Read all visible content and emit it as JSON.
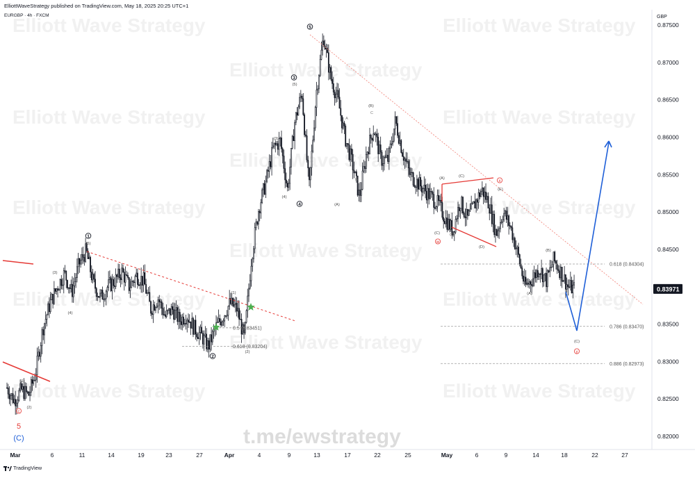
{
  "header": {
    "published": "ElliottWaveStrategy published on TradingView.com, May 18, 2025 20:25 UTC+1",
    "symbol": "EURGBP · 4h · FXCM",
    "currency": "GBP",
    "current_price": "0.83971"
  },
  "footer": {
    "brand": "TradingView",
    "logo_icon": "tradingview-logo-icon"
  },
  "watermark": {
    "text": "Elliott Wave Strategy",
    "telegram": "t.me/ewstrategy"
  },
  "colors": {
    "candle": "#131722",
    "bullish_trend": "#e53935",
    "trendline_red": "#e53935",
    "projection_blue": "#1e5fd8",
    "fib_line": "#9a9a9a",
    "label_grey": "#4a4a4a",
    "green_star": "#4caf50"
  },
  "chart_data": {
    "type": "candlestick",
    "y_axis": {
      "min": 0.8185,
      "max": 0.8765,
      "ticks": [
        0.875,
        0.87,
        0.865,
        0.86,
        0.855,
        0.85,
        0.845,
        0.84,
        0.835,
        0.83,
        0.825,
        0.82
      ],
      "tick_labels": [
        "0.87500",
        "0.87000",
        "0.86500",
        "0.86000",
        "0.85500",
        "0.85000",
        "0.84500",
        "0.84000",
        "0.83500",
        "0.83000",
        "0.82500",
        "0.82000"
      ]
    },
    "x_axis": {
      "labels": [
        "Mar",
        "6",
        "11",
        "14",
        "19",
        "23",
        "27",
        "Apr",
        "4",
        "9",
        "13",
        "17",
        "22",
        "25",
        "May",
        "6",
        "9",
        "14",
        "18",
        "22",
        "27"
      ],
      "bold": [
        "Mar",
        "Apr",
        "May"
      ]
    },
    "price_path": [
      [
        "2025-02-28",
        0.8265
      ],
      [
        "2025-03-01",
        0.8248
      ],
      [
        "2025-03-02",
        0.8262
      ],
      [
        "2025-03-03",
        0.8255
      ],
      [
        "2025-03-04",
        0.8285
      ],
      [
        "2025-03-05",
        0.8345
      ],
      [
        "2025-03-06",
        0.8378
      ],
      [
        "2025-03-07",
        0.84
      ],
      [
        "2025-03-08",
        0.8418
      ],
      [
        "2025-03-09",
        0.8392
      ],
      [
        "2025-03-10",
        0.843
      ],
      [
        "2025-03-11",
        0.8448
      ],
      [
        "2025-03-12",
        0.8405
      ],
      [
        "2025-03-13",
        0.8385
      ],
      [
        "2025-03-14",
        0.84
      ],
      [
        "2025-03-15",
        0.8408
      ],
      [
        "2025-03-16",
        0.842
      ],
      [
        "2025-03-17",
        0.84
      ],
      [
        "2025-03-18",
        0.8415
      ],
      [
        "2025-03-19",
        0.8408
      ],
      [
        "2025-03-20",
        0.837
      ],
      [
        "2025-03-21",
        0.8385
      ],
      [
        "2025-03-22",
        0.836
      ],
      [
        "2025-03-23",
        0.837
      ],
      [
        "2025-03-24",
        0.8355
      ],
      [
        "2025-03-25",
        0.8362
      ],
      [
        "2025-03-26",
        0.8345
      ],
      [
        "2025-03-27",
        0.8335
      ],
      [
        "2025-03-28",
        0.832
      ],
      [
        "2025-03-29",
        0.8345
      ],
      [
        "2025-03-30",
        0.836
      ],
      [
        "2025-03-31",
        0.8378
      ],
      [
        "2025-04-01",
        0.837
      ],
      [
        "2025-04-02",
        0.833
      ],
      [
        "2025-04-03",
        0.844
      ],
      [
        "2025-04-04",
        0.8505
      ],
      [
        "2025-04-05",
        0.854
      ],
      [
        "2025-04-06",
        0.8585
      ],
      [
        "2025-04-07",
        0.8595
      ],
      [
        "2025-04-08",
        0.853
      ],
      [
        "2025-04-09",
        0.862
      ],
      [
        "2025-04-10",
        0.866
      ],
      [
        "2025-04-11",
        0.853
      ],
      [
        "2025-04-12",
        0.866
      ],
      [
        "2025-04-13",
        0.8735
      ],
      [
        "2025-04-14",
        0.868
      ],
      [
        "2025-04-15",
        0.865
      ],
      [
        "2025-04-16",
        0.86
      ],
      [
        "2025-04-17",
        0.8565
      ],
      [
        "2025-04-18",
        0.852
      ],
      [
        "2025-04-19",
        0.858
      ],
      [
        "2025-04-20",
        0.8612
      ],
      [
        "2025-04-21",
        0.857
      ],
      [
        "2025-04-22",
        0.857
      ],
      [
        "2025-04-23",
        0.8622
      ],
      [
        "2025-04-24",
        0.858
      ],
      [
        "2025-04-25",
        0.855
      ],
      [
        "2025-04-26",
        0.854
      ],
      [
        "2025-04-27",
        0.853
      ],
      [
        "2025-04-28",
        0.852
      ],
      [
        "2025-04-29",
        0.851
      ],
      [
        "2025-04-30",
        0.849
      ],
      [
        "2025-05-01",
        0.8475
      ],
      [
        "2025-05-02",
        0.8515
      ],
      [
        "2025-05-03",
        0.849
      ],
      [
        "2025-05-04",
        0.851
      ],
      [
        "2025-05-05",
        0.853
      ],
      [
        "2025-05-06",
        0.8512
      ],
      [
        "2025-05-07",
        0.847
      ],
      [
        "2025-05-08",
        0.85
      ],
      [
        "2025-05-09",
        0.848
      ],
      [
        "2025-05-10",
        0.8445
      ],
      [
        "2025-05-11",
        0.84
      ],
      [
        "2025-05-12",
        0.841
      ],
      [
        "2025-05-13",
        0.8425
      ],
      [
        "2025-05-14",
        0.8408
      ],
      [
        "2025-05-15",
        0.8436
      ],
      [
        "2025-05-16",
        0.842
      ],
      [
        "2025-05-17",
        0.84
      ],
      [
        "2025-05-18",
        0.8397
      ]
    ],
    "fib_levels": [
      {
        "ratio": "0.618",
        "price": 0.83204,
        "label": "0.618 (0.83204)"
      },
      {
        "ratio": "0.5",
        "price": 0.83451,
        "label": "0.5 (0.83451)"
      },
      {
        "ratio": "0.618",
        "price": 0.84304,
        "label": "0.618 (0.84304)"
      },
      {
        "ratio": "0.786",
        "price": 0.8347,
        "label": "0.786 (0.83470)"
      },
      {
        "ratio": "0.886",
        "price": 0.82973,
        "label": "0.886 (0.82973)"
      }
    ],
    "wave_labels": [
      {
        "text": "5",
        "style": "red"
      },
      {
        "text": "(C)",
        "style": "blue"
      },
      {
        "text": "c",
        "style": "red-circle"
      },
      {
        "text": "(1)",
        "style": "small"
      },
      {
        "text": "(2)",
        "style": "small"
      },
      {
        "text": "(3)",
        "style": "small"
      },
      {
        "text": "(4)",
        "style": "small"
      },
      {
        "text": "(5)",
        "style": "small"
      },
      {
        "text": "1",
        "style": "black-circle"
      },
      {
        "text": "2",
        "style": "black-circle"
      },
      {
        "text": "(1)",
        "style": "small"
      },
      {
        "text": "(2)",
        "style": "small"
      },
      {
        "text": "(3)",
        "style": "small"
      },
      {
        "text": "(4)",
        "style": "small"
      },
      {
        "text": "(5)",
        "style": "small"
      },
      {
        "text": "3",
        "style": "black-circle"
      },
      {
        "text": "4",
        "style": "black-circle"
      },
      {
        "text": "5",
        "style": "black-circle"
      },
      {
        "text": "(A)",
        "style": "small"
      },
      {
        "text": "(B)",
        "style": "small"
      },
      {
        "text": "A",
        "style": "tiny"
      },
      {
        "text": "B",
        "style": "tiny"
      },
      {
        "text": "C",
        "style": "tiny"
      },
      {
        "text": "(C)",
        "style": "small"
      },
      {
        "text": "w",
        "style": "red-circle"
      },
      {
        "text": "(A)",
        "style": "small"
      },
      {
        "text": "(B)",
        "style": "small"
      },
      {
        "text": "(C)",
        "style": "small"
      },
      {
        "text": "(D)",
        "style": "small"
      },
      {
        "text": "(E)",
        "style": "small"
      },
      {
        "text": "x",
        "style": "red-circle"
      },
      {
        "text": "(A)",
        "style": "small"
      },
      {
        "text": "(B)",
        "style": "small"
      },
      {
        "text": "(C)",
        "style": "small"
      },
      {
        "text": "y",
        "style": "red-circle"
      }
    ],
    "projection": {
      "color": "blue",
      "path": [
        [
          "2025-05-18",
          0.8397
        ],
        [
          "2025-05-20",
          0.8345
        ],
        [
          "2025-05-24",
          0.8595
        ]
      ]
    }
  }
}
